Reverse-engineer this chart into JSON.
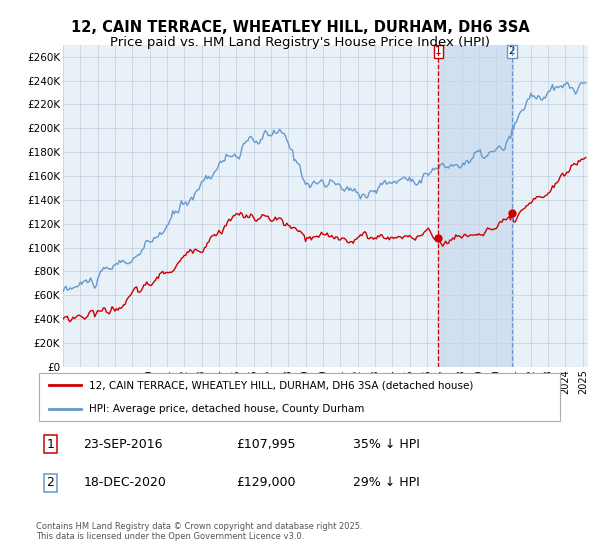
{
  "title_line1": "12, CAIN TERRACE, WHEATLEY HILL, DURHAM, DH6 3SA",
  "title_line2": "Price paid vs. HM Land Registry's House Price Index (HPI)",
  "ylabel_ticks": [
    "£0",
    "£20K",
    "£40K",
    "£60K",
    "£80K",
    "£100K",
    "£120K",
    "£140K",
    "£160K",
    "£180K",
    "£200K",
    "£220K",
    "£240K",
    "£260K"
  ],
  "ytick_values": [
    0,
    20000,
    40000,
    60000,
    80000,
    100000,
    120000,
    140000,
    160000,
    180000,
    200000,
    220000,
    240000,
    260000
  ],
  "ylim": [
    0,
    270000
  ],
  "sale1_price": 107995,
  "sale1_date": "23-SEP-2016",
  "sale1_hpi_diff": "35% ↓ HPI",
  "sale1_year": 2016,
  "sale1_month": 9,
  "sale2_price": 129000,
  "sale2_date": "18-DEC-2020",
  "sale2_hpi_diff": "29% ↓ HPI",
  "sale2_year": 2020,
  "sale2_month": 12,
  "legend_red": "12, CAIN TERRACE, WHEATLEY HILL, DURHAM, DH6 3SA (detached house)",
  "legend_blue": "HPI: Average price, detached house, County Durham",
  "footer": "Contains HM Land Registry data © Crown copyright and database right 2025.\nThis data is licensed under the Open Government Licence v3.0.",
  "line_red_color": "#cc0000",
  "line_blue_color": "#6699cc",
  "plot_bg_color": "#e8f0f8",
  "grid_color": "#c8d4e4",
  "vspan_color": "#d0e0f0",
  "title_fontsize": 10.5,
  "subtitle_fontsize": 9.5
}
